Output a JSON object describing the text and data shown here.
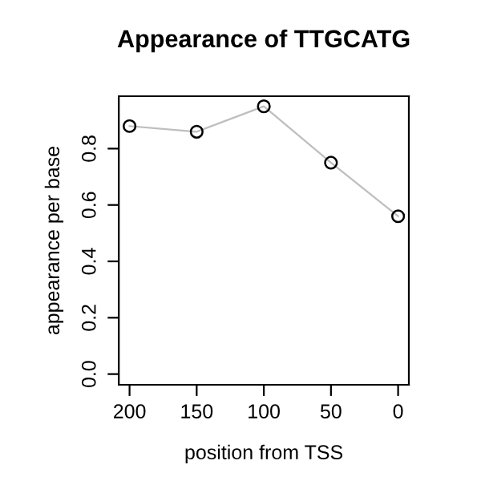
{
  "chart_data": {
    "type": "line",
    "title": "Appearance of TTGCATG",
    "xlabel": "position from TSS",
    "ylabel": "appearance per base",
    "x": [
      200,
      150,
      100,
      50,
      0
    ],
    "series": [
      {
        "color": "#bebebe",
        "values": [
          0.88,
          0.86,
          0.95,
          0.75,
          0.56
        ]
      }
    ],
    "xlim": [
      208,
      -8
    ],
    "xticks": [
      200,
      150,
      100,
      50,
      0
    ],
    "ylim": [
      -0.038,
      0.986
    ],
    "yticks": [
      {
        "value": 0,
        "label": "0.0"
      },
      0.2,
      0.4,
      0.6,
      0.8
    ],
    "marker": "circle",
    "line_style": "solid",
    "grid": false,
    "legend": false
  }
}
